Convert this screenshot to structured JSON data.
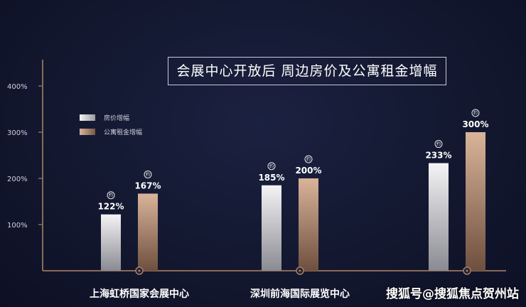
{
  "chart_data": {
    "type": "bar",
    "title": "会展中心开放后   周边房价及公寓租金增幅",
    "categories": [
      "上海虹桥国家会展中心",
      "深圳前海国际展览中心",
      ""
    ],
    "series": [
      {
        "name": "房价增幅",
        "values": [
          122,
          185,
          233
        ],
        "labels": [
          "122%",
          "185%",
          "233%"
        ],
        "color_top": "#f4f4f6",
        "color_bottom": "#8a8a92"
      },
      {
        "name": "公寓租金增幅",
        "values": [
          167,
          200,
          300
        ],
        "labels": [
          "167%",
          "200%",
          "300%"
        ],
        "color_top": "#d9b49a",
        "color_bottom": "#6e4f3e"
      }
    ],
    "yticks": [
      "100%",
      "200%",
      "300%",
      "400%"
    ],
    "ytick_values": [
      100,
      200,
      300,
      400
    ],
    "ylim": [
      0,
      460
    ],
    "legend_position": "top-left",
    "grid": false
  },
  "badge_text": "约",
  "watermark": "搜狐号@搜狐焦点贺州站",
  "colors": {
    "background": "#131830",
    "axis": "#8a6a56",
    "marker": "#a0806a"
  }
}
